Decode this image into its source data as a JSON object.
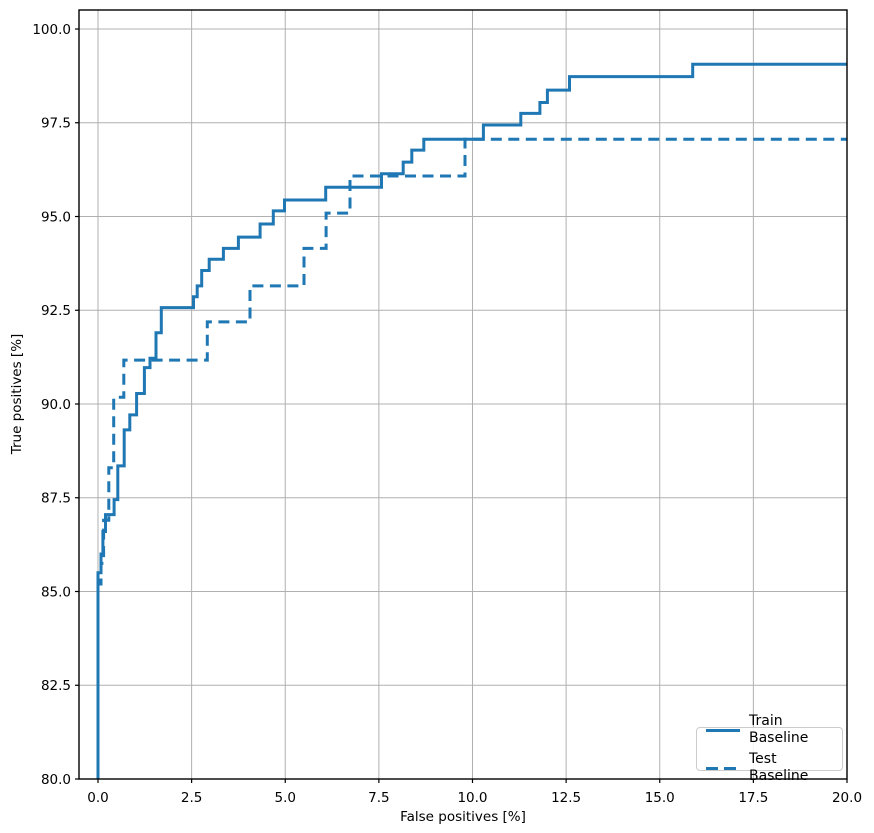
{
  "chart_data": {
    "type": "line",
    "title": "",
    "xlabel": "False positives [%]",
    "ylabel": "True positives [%]",
    "xlim": [
      -0.507,
      20
    ],
    "ylim": [
      80,
      100.507
    ],
    "grid": true,
    "grid_color": "#b0b0b0",
    "spine_color": "#000000",
    "line_color": "#1f77b4",
    "legend_position": "lower right",
    "x_ticks": [
      0.0,
      2.5,
      5.0,
      7.5,
      10.0,
      12.5,
      15.0,
      17.5,
      20.0
    ],
    "x_tick_labels": [
      "0.0",
      "2.5",
      "5.0",
      "7.5",
      "10.0",
      "12.5",
      "15.0",
      "17.5",
      "20.0"
    ],
    "y_ticks": [
      80.0,
      82.5,
      85.0,
      87.5,
      90.0,
      92.5,
      95.0,
      97.5,
      100.0
    ],
    "y_tick_labels": [
      "80.0",
      "82.5",
      "85.0",
      "87.5",
      "90.0",
      "92.5",
      "95.0",
      "97.5",
      "100.0"
    ],
    "series": [
      {
        "name": "Train Baseline",
        "style": "solid",
        "points": [
          [
            0,
            80
          ],
          [
            0,
            85.5
          ],
          [
            0.08,
            85.5
          ],
          [
            0.08,
            86.0
          ],
          [
            0.13,
            86.0
          ],
          [
            0.13,
            86.6
          ],
          [
            0.2,
            86.6
          ],
          [
            0.2,
            87.05
          ],
          [
            0.43,
            87.05
          ],
          [
            0.43,
            87.45
          ],
          [
            0.53,
            87.45
          ],
          [
            0.53,
            88.35
          ],
          [
            0.7,
            88.35
          ],
          [
            0.7,
            89.31
          ],
          [
            0.85,
            89.31
          ],
          [
            0.85,
            89.71
          ],
          [
            1.03,
            89.71
          ],
          [
            1.03,
            90.28
          ],
          [
            1.24,
            90.28
          ],
          [
            1.24,
            90.97
          ],
          [
            1.39,
            90.97
          ],
          [
            1.39,
            91.22
          ],
          [
            1.55,
            91.22
          ],
          [
            1.55,
            91.9
          ],
          [
            1.69,
            91.9
          ],
          [
            1.69,
            92.57
          ],
          [
            2.55,
            92.57
          ],
          [
            2.55,
            92.86
          ],
          [
            2.65,
            92.86
          ],
          [
            2.65,
            93.15
          ],
          [
            2.77,
            93.15
          ],
          [
            2.77,
            93.56
          ],
          [
            2.97,
            93.56
          ],
          [
            2.97,
            93.86
          ],
          [
            3.35,
            93.86
          ],
          [
            3.35,
            94.15
          ],
          [
            3.75,
            94.15
          ],
          [
            3.75,
            94.45
          ],
          [
            4.33,
            94.45
          ],
          [
            4.33,
            94.8
          ],
          [
            4.68,
            94.8
          ],
          [
            4.68,
            95.15
          ],
          [
            4.98,
            95.15
          ],
          [
            4.98,
            95.44
          ],
          [
            6.08,
            95.44
          ],
          [
            6.08,
            95.78
          ],
          [
            7.57,
            95.78
          ],
          [
            7.57,
            96.14
          ],
          [
            8.15,
            96.14
          ],
          [
            8.15,
            96.45
          ],
          [
            8.38,
            96.45
          ],
          [
            8.38,
            96.77
          ],
          [
            8.7,
            96.77
          ],
          [
            8.7,
            97.06
          ],
          [
            10.29,
            97.06
          ],
          [
            10.29,
            97.44
          ],
          [
            11.29,
            97.44
          ],
          [
            11.29,
            97.75
          ],
          [
            11.8,
            97.75
          ],
          [
            11.8,
            98.04
          ],
          [
            12.0,
            98.04
          ],
          [
            12.0,
            98.37
          ],
          [
            12.59,
            98.37
          ],
          [
            12.59,
            98.73
          ],
          [
            15.88,
            98.73
          ],
          [
            15.88,
            99.06
          ],
          [
            20,
            99.06
          ]
        ]
      },
      {
        "name": "Test Baseline",
        "style": "dashed",
        "points": [
          [
            0,
            80
          ],
          [
            0,
            85.2
          ],
          [
            0.08,
            85.2
          ],
          [
            0.08,
            85.75
          ],
          [
            0.15,
            85.75
          ],
          [
            0.15,
            86.9
          ],
          [
            0.29,
            86.9
          ],
          [
            0.29,
            88.3
          ],
          [
            0.42,
            88.3
          ],
          [
            0.42,
            90.18
          ],
          [
            0.69,
            90.18
          ],
          [
            0.69,
            91.17
          ],
          [
            2.92,
            91.17
          ],
          [
            2.92,
            92.19
          ],
          [
            4.06,
            92.19
          ],
          [
            4.06,
            93.15
          ],
          [
            5.5,
            93.15
          ],
          [
            5.5,
            94.15
          ],
          [
            6.09,
            94.15
          ],
          [
            6.09,
            95.09
          ],
          [
            6.73,
            95.09
          ],
          [
            6.73,
            96.08
          ],
          [
            9.8,
            96.08
          ],
          [
            9.8,
            97.06
          ],
          [
            20,
            97.06
          ]
        ]
      }
    ]
  },
  "legend": {
    "items": [
      {
        "label": "Train Baseline",
        "line": "solid"
      },
      {
        "label": "Test Baseline",
        "line": "dashed"
      }
    ]
  }
}
